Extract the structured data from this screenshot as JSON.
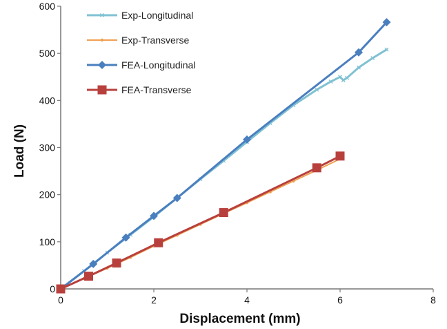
{
  "chart_data": {
    "type": "line",
    "xlabel": "Displacement (mm)",
    "ylabel": "Load (N)",
    "xlim": [
      0,
      8
    ],
    "ylim": [
      0,
      600
    ],
    "xticks": [
      0,
      2,
      4,
      6,
      8
    ],
    "yticks": [
      0,
      100,
      200,
      300,
      400,
      500,
      600
    ],
    "grid": false,
    "legend_position": "top-left",
    "series": [
      {
        "name": "Exp-Longitudinal",
        "color": "#7fc1d3",
        "marker": "cross",
        "line_width": 3,
        "points": [
          [
            0,
            0
          ],
          [
            0.5,
            38
          ],
          [
            1.0,
            77
          ],
          [
            1.5,
            115
          ],
          [
            2.0,
            153
          ],
          [
            2.5,
            193
          ],
          [
            3.0,
            233
          ],
          [
            3.5,
            272
          ],
          [
            4.0,
            312
          ],
          [
            4.5,
            352
          ],
          [
            5.0,
            390
          ],
          [
            5.5,
            423
          ],
          [
            5.8,
            440
          ],
          [
            6.0,
            450
          ],
          [
            6.07,
            443
          ],
          [
            6.15,
            448
          ],
          [
            6.4,
            470
          ],
          [
            6.7,
            490
          ],
          [
            7.0,
            508
          ]
        ]
      },
      {
        "name": "Exp-Transverse",
        "color": "#f0a050",
        "marker": "dot",
        "line_width": 2,
        "points": [
          [
            0,
            0
          ],
          [
            0.5,
            22
          ],
          [
            1.0,
            44
          ],
          [
            1.5,
            67
          ],
          [
            2.0,
            91
          ],
          [
            2.5,
            114
          ],
          [
            3.0,
            137
          ],
          [
            3.5,
            160
          ],
          [
            4.0,
            183
          ],
          [
            4.5,
            206
          ],
          [
            5.0,
            229
          ],
          [
            5.5,
            252
          ],
          [
            6.0,
            276
          ]
        ]
      },
      {
        "name": "FEA-Longitudinal",
        "color": "#4a7fbf",
        "marker": "diamond",
        "line_width": 3,
        "points": [
          [
            0,
            0
          ],
          [
            0.7,
            53
          ],
          [
            1.4,
            109
          ],
          [
            2.0,
            155
          ],
          [
            2.5,
            193
          ],
          [
            4.0,
            317
          ],
          [
            6.4,
            502
          ],
          [
            7.0,
            566
          ]
        ]
      },
      {
        "name": "FEA-Transverse",
        "color": "#b8403c",
        "marker": "square",
        "line_width": 3,
        "points": [
          [
            0,
            0
          ],
          [
            0.6,
            27
          ],
          [
            1.2,
            55
          ],
          [
            2.1,
            98
          ],
          [
            3.5,
            162
          ],
          [
            5.5,
            257
          ],
          [
            6.0,
            282
          ]
        ]
      }
    ]
  }
}
